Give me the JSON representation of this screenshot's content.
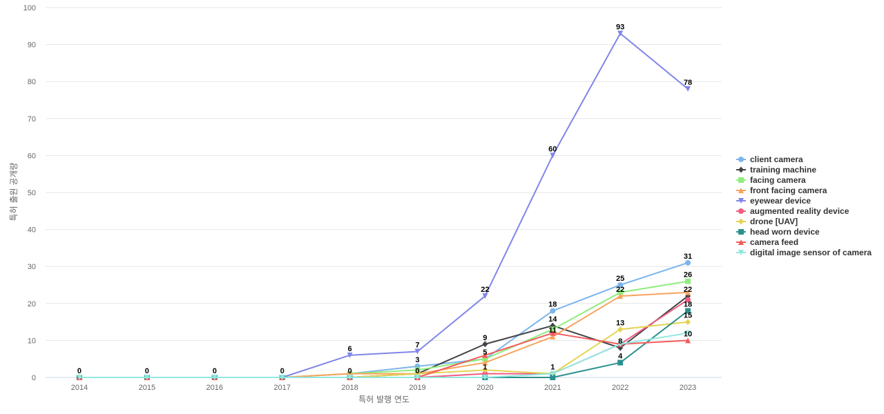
{
  "chart_data": {
    "type": "line",
    "xlabel": "특허 발행 연도",
    "ylabel": "특허 출원 공개량",
    "ylim": [
      0,
      100
    ],
    "y_ticks": [
      0,
      10,
      20,
      30,
      40,
      50,
      60,
      70,
      80,
      90,
      100
    ],
    "grid": true,
    "legend_position": "right",
    "x": [
      "2014",
      "2015",
      "2016",
      "2017",
      "2018",
      "2019",
      "2020",
      "2021",
      "2022",
      "2023"
    ],
    "series": [
      {
        "name": "client camera",
        "color": "#7cb5ec",
        "marker": "circle",
        "values": [
          0,
          0,
          0,
          0,
          1,
          3,
          5,
          18,
          25,
          31
        ]
      },
      {
        "name": "training machine",
        "color": "#434348",
        "marker": "diamond",
        "values": [
          0,
          0,
          0,
          0,
          0,
          1,
          9,
          14,
          8,
          22
        ]
      },
      {
        "name": "facing camera",
        "color": "#90ed7d",
        "marker": "square",
        "values": [
          0,
          0,
          0,
          0,
          1,
          2,
          5,
          13,
          23,
          26
        ]
      },
      {
        "name": "front facing camera",
        "color": "#f7a35c",
        "marker": "triangle",
        "values": [
          0,
          0,
          0,
          0,
          1,
          1,
          4,
          11,
          22,
          23
        ]
      },
      {
        "name": "eyewear device",
        "color": "#8085e9",
        "marker": "triangle-down",
        "values": [
          0,
          0,
          0,
          0,
          6,
          7,
          22,
          60,
          93,
          78
        ]
      },
      {
        "name": "augmented reality device",
        "color": "#f15c80",
        "marker": "circle",
        "values": [
          0,
          0,
          0,
          0,
          0,
          0,
          1,
          1,
          9,
          21
        ]
      },
      {
        "name": "drone [UAV]",
        "color": "#e4d354",
        "marker": "diamond",
        "values": [
          0,
          0,
          0,
          0,
          0,
          1,
          2,
          1,
          13,
          15
        ]
      },
      {
        "name": "head worn device",
        "color": "#2b908f",
        "marker": "square",
        "values": [
          0,
          0,
          0,
          0,
          0,
          0,
          0,
          0,
          4,
          18
        ]
      },
      {
        "name": "camera feed",
        "color": "#f45b5b",
        "marker": "triangle",
        "values": [
          0,
          0,
          0,
          0,
          0,
          0,
          6,
          12,
          9,
          10
        ]
      },
      {
        "name": "digital image sensor of camera",
        "color": "#91e8e1",
        "marker": "triangle-down",
        "values": [
          0,
          0,
          0,
          0,
          0,
          0,
          0,
          1,
          9,
          12
        ]
      }
    ],
    "data_labels": [
      {
        "x": "2014",
        "value": 0
      },
      {
        "x": "2015",
        "value": 0
      },
      {
        "x": "2016",
        "value": 0
      },
      {
        "x": "2017",
        "value": 0
      },
      {
        "x": "2018",
        "value": 6
      },
      {
        "x": "2018",
        "value": 0
      },
      {
        "x": "2019",
        "value": 7
      },
      {
        "x": "2019",
        "value": 3
      },
      {
        "x": "2019",
        "value": 0
      },
      {
        "x": "2020",
        "value": 22
      },
      {
        "x": "2020",
        "value": 9
      },
      {
        "x": "2020",
        "value": 5
      },
      {
        "x": "2020",
        "value": 1
      },
      {
        "x": "2021",
        "value": 60
      },
      {
        "x": "2021",
        "value": 18
      },
      {
        "x": "2021",
        "value": 14
      },
      {
        "x": "2021",
        "value": 11
      },
      {
        "x": "2021",
        "value": 1
      },
      {
        "x": "2022",
        "value": 93
      },
      {
        "x": "2022",
        "value": 25
      },
      {
        "x": "2022",
        "value": 22
      },
      {
        "x": "2022",
        "value": 13
      },
      {
        "x": "2022",
        "value": 8
      },
      {
        "x": "2022",
        "value": 4
      },
      {
        "x": "2023",
        "value": 78
      },
      {
        "x": "2023",
        "value": 31
      },
      {
        "x": "2023",
        "value": 26
      },
      {
        "x": "2023",
        "value": 22
      },
      {
        "x": "2023",
        "value": 18
      },
      {
        "x": "2023",
        "value": 15
      },
      {
        "x": "2023",
        "value": 10
      }
    ]
  }
}
